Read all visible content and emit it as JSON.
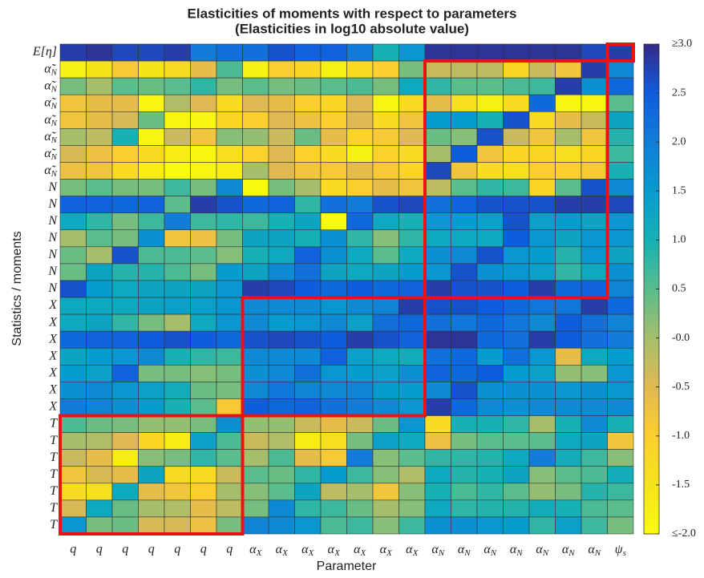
{
  "chart_data": {
    "type": "heatmap",
    "title": "Elasticities of moments with respect to parameters",
    "subtitle": "(Elasticities in log10 absolute value)",
    "x_label": "Parameter",
    "y_label": "Statistics / moments",
    "colormap": "parula",
    "clim": [
      -2,
      3
    ],
    "cticks": [
      {
        "value": 3,
        "label": "≥3.0"
      },
      2.5,
      {
        "value": 2,
        "label": "2.0"
      },
      1.5,
      {
        "value": 1,
        "label": "1.0"
      },
      0.5,
      {
        "value": 0,
        "label": "-0.0"
      },
      -0.5,
      {
        "value": -1,
        "label": "-1.0"
      },
      -1.5,
      {
        "value": -2,
        "label": "≤-2.0"
      }
    ],
    "x": [
      "q",
      "q",
      "q",
      "q",
      "q",
      "q",
      "q",
      "αX",
      "αX",
      "αX",
      "αX",
      "αX",
      "αX",
      "αX",
      "αN",
      "αN",
      "αN",
      "αN",
      "αN",
      "αN",
      "αN",
      "ψs"
    ],
    "y": [
      "E[η]",
      "α̃N",
      "α̃N",
      "α̃N",
      "α̃N",
      "α̃N",
      "α̃N",
      "α̃N",
      "N",
      "N",
      "N",
      "N",
      "N",
      "N",
      "N",
      "X",
      "X",
      "X",
      "X",
      "X",
      "X",
      "X",
      "T",
      "T",
      "T",
      "T",
      "T",
      "T",
      "T"
    ],
    "values": [
      [
        2.8,
        2.9,
        2.7,
        2.7,
        2.8,
        2.0,
        2.2,
        2.2,
        2.6,
        2.4,
        2.4,
        2.0,
        1.0,
        1.6,
        2.9,
        2.9,
        2.9,
        2.9,
        2.9,
        2.9,
        2.7,
        2.8
      ],
      [
        -1.8,
        -1.5,
        -0.9,
        -1.5,
        -1.3,
        -0.6,
        0.6,
        -1.8,
        -1.0,
        -1.2,
        -1.8,
        -1.3,
        -1.0,
        0.3,
        -0.3,
        -0.2,
        -0.2,
        -1.2,
        -0.3,
        -0.8,
        2.8,
        1.8
      ],
      [
        0.3,
        0.0,
        0.5,
        0.4,
        0.5,
        0.8,
        0.3,
        0.5,
        0.3,
        0.4,
        0.5,
        0.6,
        0.3,
        1.2,
        0.8,
        0.5,
        0.5,
        0.6,
        0.7,
        2.8,
        1.7,
        2.3
      ],
      [
        -0.8,
        -0.6,
        -0.6,
        -1.9,
        -0.1,
        -0.5,
        -1.3,
        -0.5,
        -0.6,
        -1.0,
        -1.2,
        -0.5,
        -1.9,
        -1.3,
        -0.6,
        -1.4,
        -1.8,
        -1.3,
        2.3,
        -1.9,
        -1.9,
        0.5
      ],
      [
        -0.8,
        -0.6,
        -0.4,
        0.4,
        -1.9,
        -1.9,
        -1.2,
        -1.0,
        -0.5,
        -0.7,
        -1.0,
        -0.5,
        -1.3,
        -0.8,
        1.5,
        1.5,
        1.0,
        2.6,
        -1.3,
        -0.6,
        -0.3,
        1.3
      ],
      [
        0.0,
        -0.2,
        1.0,
        -1.9,
        -0.3,
        -0.8,
        0.2,
        0.1,
        -0.3,
        0.4,
        -0.6,
        -1.1,
        -0.9,
        -0.5,
        0.4,
        0.2,
        2.6,
        -0.3,
        -0.8,
        0.0,
        -0.8,
        0.9
      ],
      [
        -0.4,
        -0.7,
        -1.0,
        -1.3,
        -1.7,
        -1.9,
        -1.4,
        -1.1,
        -0.5,
        -1.1,
        -1.3,
        -1.8,
        -1.1,
        -1.3,
        0.0,
        2.5,
        -0.8,
        -1.2,
        -1.2,
        -1.4,
        -1.2,
        0.7
      ],
      [
        -0.7,
        -0.8,
        -1.3,
        -1.7,
        -2.0,
        -1.9,
        -1.7,
        0.0,
        -0.5,
        -0.8,
        -0.9,
        -0.6,
        -0.9,
        -1.2,
        2.7,
        -0.8,
        -1.3,
        -1.4,
        -1.0,
        -1.0,
        -0.9,
        1.0
      ],
      [
        0.3,
        0.5,
        0.3,
        0.3,
        0.7,
        0.3,
        1.8,
        -2.0,
        0.3,
        0.0,
        -1.3,
        -1.0,
        -0.6,
        -0.8,
        -0.2,
        0.5,
        0.8,
        0.7,
        -1.2,
        0.5,
        2.6,
        1.8
      ],
      [
        2.4,
        2.4,
        2.3,
        2.4,
        0.5,
        2.8,
        2.6,
        2.3,
        2.4,
        0.8,
        2.2,
        2.0,
        2.6,
        2.7,
        2.2,
        2.4,
        2.6,
        2.6,
        2.6,
        2.8,
        2.8,
        2.7
      ],
      [
        1.2,
        0.8,
        0.3,
        0.7,
        2.0,
        0.7,
        0.8,
        0.7,
        1.0,
        1.3,
        -2.0,
        2.3,
        1.2,
        1.0,
        1.6,
        1.5,
        1.4,
        2.6,
        1.4,
        1.5,
        1.3,
        1.6
      ],
      [
        0.0,
        0.5,
        0.3,
        1.7,
        -0.8,
        -0.7,
        0.3,
        1.3,
        1.3,
        1.0,
        1.7,
        0.8,
        0.2,
        0.8,
        1.2,
        1.2,
        1.2,
        2.5,
        1.6,
        1.3,
        1.6,
        1.6
      ],
      [
        0.4,
        0.0,
        2.6,
        0.6,
        0.6,
        0.5,
        0.2,
        1.0,
        1.2,
        2.4,
        1.7,
        1.2,
        0.5,
        1.2,
        1.7,
        1.8,
        2.6,
        1.6,
        1.5,
        0.9,
        1.6,
        1.3
      ],
      [
        0.4,
        1.3,
        0.9,
        0.9,
        0.6,
        0.3,
        1.5,
        1.3,
        1.8,
        2.2,
        1.3,
        1.2,
        1.3,
        1.5,
        1.6,
        2.6,
        1.7,
        1.6,
        1.4,
        0.8,
        1.2,
        1.7
      ],
      [
        2.6,
        1.5,
        1.2,
        1.3,
        1.3,
        1.3,
        1.6,
        2.8,
        2.7,
        2.5,
        2.3,
        2.5,
        2.3,
        2.4,
        2.8,
        2.6,
        2.6,
        2.5,
        2.8,
        2.3,
        2.4,
        1.9
      ],
      [
        1.2,
        1.2,
        1.2,
        1.3,
        1.4,
        1.4,
        1.6,
        1.8,
        1.8,
        1.8,
        1.6,
        1.8,
        1.9,
        2.8,
        2.6,
        2.6,
        2.5,
        2.3,
        2.1,
        2.1,
        2.8,
        2.3
      ],
      [
        1.2,
        1.3,
        0.8,
        0.3,
        0.0,
        1.2,
        1.6,
        1.8,
        1.5,
        1.6,
        1.8,
        1.4,
        2.2,
        2.3,
        2.2,
        2.1,
        2.3,
        2.1,
        1.8,
        2.5,
        2.2,
        1.9
      ],
      [
        2.3,
        2.4,
        2.4,
        2.5,
        2.6,
        2.5,
        2.3,
        2.6,
        2.7,
        2.6,
        2.5,
        2.8,
        2.6,
        2.4,
        2.9,
        2.9,
        2.3,
        2.2,
        2.8,
        2.5,
        2.2,
        2.0
      ],
      [
        1.3,
        1.5,
        1.6,
        1.8,
        1.0,
        0.8,
        0.7,
        1.8,
        1.8,
        1.8,
        2.4,
        1.4,
        1.2,
        1.1,
        2.2,
        2.3,
        1.5,
        2.2,
        1.6,
        -0.6,
        1.2,
        1.5
      ],
      [
        1.5,
        1.4,
        2.4,
        0.3,
        0.3,
        0.2,
        0.3,
        1.7,
        1.8,
        2.2,
        1.6,
        1.5,
        1.4,
        1.7,
        2.4,
        2.3,
        2.5,
        1.5,
        1.4,
        0.1,
        0.2,
        1.6
      ],
      [
        1.7,
        1.8,
        1.6,
        1.4,
        1.1,
        0.4,
        0.3,
        1.8,
        2.1,
        1.9,
        1.8,
        1.9,
        1.5,
        1.5,
        1.8,
        2.6,
        1.7,
        1.7,
        1.7,
        1.6,
        1.7,
        1.6
      ],
      [
        2.0,
        1.9,
        1.7,
        1.5,
        1.0,
        0.5,
        -0.9,
        2.5,
        2.3,
        2.4,
        2.2,
        2.0,
        1.8,
        1.6,
        2.8,
        2.3,
        1.8,
        1.7,
        1.8,
        1.8,
        1.8,
        1.8
      ],
      [
        0.6,
        0.4,
        0.3,
        0.1,
        0.1,
        0.3,
        1.7,
        0.1,
        0.1,
        -0.3,
        -0.6,
        -0.3,
        0.4,
        1.6,
        -1.3,
        1.0,
        1.0,
        0.8,
        0.0,
        1.0,
        1.8,
        1.0
      ],
      [
        0.0,
        -0.1,
        -0.5,
        -1.2,
        -1.7,
        1.4,
        0.6,
        -0.3,
        -0.1,
        -1.7,
        -1.4,
        0.3,
        1.4,
        1.2,
        -0.7,
        0.3,
        0.5,
        0.5,
        0.5,
        1.2,
        1.3,
        -0.8
      ],
      [
        -0.3,
        -0.6,
        -1.7,
        0.2,
        0.3,
        0.8,
        0.5,
        0.0,
        0.6,
        -0.6,
        -0.9,
        2.0,
        0.2,
        0.5,
        0.8,
        0.8,
        0.9,
        1.2,
        2.0,
        1.1,
        0.7,
        0.2
      ],
      [
        -0.8,
        -0.4,
        -0.6,
        1.3,
        -1.3,
        -1.3,
        -0.3,
        0.5,
        0.4,
        0.8,
        1.5,
        0.7,
        0.2,
        -0.1,
        1.2,
        0.9,
        1.0,
        1.3,
        0.2,
        0.5,
        0.6,
        1.1
      ],
      [
        -1.3,
        -1.4,
        1.2,
        -0.6,
        -0.8,
        -1.0,
        0.0,
        0.2,
        0.5,
        1.3,
        -0.2,
        0.0,
        -0.8,
        0.2,
        1.0,
        0.6,
        0.8,
        0.5,
        0.1,
        0.3,
        0.9,
        0.7
      ],
      [
        -0.4,
        1.2,
        0.4,
        0.0,
        -0.1,
        -0.6,
        -0.2,
        0.3,
        1.8,
        0.8,
        0.7,
        0.4,
        0.0,
        0.2,
        1.2,
        0.8,
        0.9,
        0.9,
        1.1,
        1.0,
        0.6,
        0.5
      ],
      [
        1.6,
        0.3,
        0.4,
        -0.4,
        -0.4,
        -0.7,
        0.3,
        1.9,
        1.8,
        1.6,
        0.6,
        0.7,
        0.2,
        0.7,
        1.7,
        1.7,
        1.6,
        1.5,
        0.8,
        1.4,
        0.7,
        0.3
      ]
    ]
  }
}
